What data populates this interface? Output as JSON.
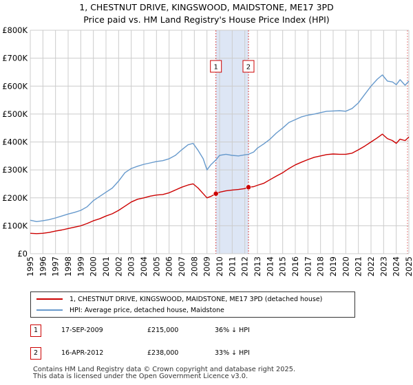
{
  "title_line1": "1, CHESTNUT DRIVE, KINGSWOOD, MAIDSTONE, ME17 3PD",
  "title_line2": "Price paid vs. HM Land Registry's House Price Index (HPI)",
  "colors": {
    "red": "#cc0000",
    "blue": "#6699cc",
    "shade": "#dde6f5",
    "grid": "#cccccc",
    "vline": "#cc0000"
  },
  "legend": {
    "red_label": "1, CHESTNUT DRIVE, KINGSWOOD, MAIDSTONE, ME17 3PD (detached house)",
    "blue_label": "HPI: Average price, detached house, Maidstone"
  },
  "transactions": [
    {
      "id": "1",
      "date": "17-SEP-2009",
      "price": "£215,000",
      "hpi": "36% ↓ HPI"
    },
    {
      "id": "2",
      "date": "16-APR-2012",
      "price": "£238,000",
      "hpi": "33% ↓ HPI"
    }
  ],
  "footer_line1": "Contains HM Land Registry data © Crown copyright and database right 2025.",
  "footer_line2": "This data is licensed under the Open Government Licence v3.0.",
  "chart_data": {
    "type": "line",
    "title": "1, CHESTNUT DRIVE, KINGSWOOD, MAIDSTONE, ME17 3PD — Price paid vs. HM Land Registry's House Price Index (HPI)",
    "xlabel": "",
    "ylabel": "",
    "xlim": [
      1995,
      2025
    ],
    "ylim": [
      0,
      800000
    ],
    "y_ticks": [
      {
        "value": 0,
        "label": "£0"
      },
      {
        "value": 100000,
        "label": "£100K"
      },
      {
        "value": 200000,
        "label": "£200K"
      },
      {
        "value": 300000,
        "label": "£300K"
      },
      {
        "value": 400000,
        "label": "£400K"
      },
      {
        "value": 500000,
        "label": "£500K"
      },
      {
        "value": 600000,
        "label": "£600K"
      },
      {
        "value": 700000,
        "label": "£700K"
      },
      {
        "value": 800000,
        "label": "£800K"
      }
    ],
    "x_ticks": [
      "1995",
      "1996",
      "1997",
      "1998",
      "1999",
      "2000",
      "2001",
      "2002",
      "2003",
      "2004",
      "2005",
      "2006",
      "2007",
      "2008",
      "2009",
      "2010",
      "2011",
      "2012",
      "2013",
      "2014",
      "2015",
      "2016",
      "2017",
      "2018",
      "2019",
      "2020",
      "2021",
      "2022",
      "2023",
      "2024",
      "2025"
    ],
    "highlight_span": [
      2009.71,
      2012.29
    ],
    "series": [
      {
        "name": "1, CHESTNUT DRIVE, KINGSWOOD, MAIDSTONE, ME17 3PD (detached house)",
        "color": "#cc0000",
        "x": [
          1995,
          1995.5,
          1996,
          1996.5,
          1997,
          1997.5,
          1998,
          1998.5,
          1999,
          1999.5,
          2000,
          2000.5,
          2001,
          2001.5,
          2002,
          2002.5,
          2003,
          2003.5,
          2004,
          2004.5,
          2005,
          2005.5,
          2006,
          2006.5,
          2007,
          2007.5,
          2007.9,
          2008.3,
          2008.7,
          2009,
          2009.3,
          2009.71,
          2010,
          2010.5,
          2011,
          2011.5,
          2012,
          2012.29,
          2012.7,
          2013,
          2013.5,
          2014,
          2014.5,
          2015,
          2015.5,
          2016,
          2016.5,
          2017,
          2017.5,
          2018,
          2018.5,
          2019,
          2019.5,
          2020,
          2020.5,
          2021,
          2021.5,
          2022,
          2022.5,
          2022.9,
          2023.3,
          2023.7,
          2024,
          2024.3,
          2024.7,
          2025
        ],
        "y": [
          73000,
          72000,
          73000,
          76000,
          81000,
          85000,
          90000,
          95000,
          100000,
          108000,
          118000,
          125000,
          135000,
          143000,
          155000,
          170000,
          185000,
          195000,
          200000,
          206000,
          210000,
          212000,
          218000,
          228000,
          238000,
          246000,
          250000,
          235000,
          215000,
          200000,
          205000,
          215000,
          220000,
          225000,
          228000,
          230000,
          233000,
          238000,
          240000,
          245000,
          252000,
          265000,
          278000,
          290000,
          305000,
          318000,
          328000,
          337000,
          345000,
          350000,
          355000,
          357000,
          356000,
          356000,
          360000,
          372000,
          385000,
          400000,
          415000,
          428000,
          412000,
          405000,
          395000,
          410000,
          405000,
          418000
        ]
      },
      {
        "name": "HPI: Average price, detached house, Maidstone",
        "color": "#6699cc",
        "x": [
          1995,
          1995.5,
          1996,
          1996.5,
          1997,
          1997.5,
          1998,
          1998.5,
          1999,
          1999.5,
          2000,
          2000.5,
          2001,
          2001.5,
          2002,
          2002.5,
          2003,
          2003.5,
          2004,
          2004.5,
          2005,
          2005.5,
          2006,
          2006.5,
          2007,
          2007.5,
          2007.9,
          2008.3,
          2008.7,
          2009,
          2009.3,
          2009.71,
          2010,
          2010.5,
          2011,
          2011.5,
          2012,
          2012.29,
          2012.7,
          2013,
          2013.5,
          2014,
          2014.5,
          2015,
          2015.5,
          2016,
          2016.5,
          2017,
          2017.5,
          2018,
          2018.5,
          2019,
          2019.5,
          2020,
          2020.5,
          2021,
          2021.5,
          2022,
          2022.5,
          2022.9,
          2023.3,
          2023.7,
          2024,
          2024.3,
          2024.7,
          2025
        ],
        "y": [
          120000,
          115000,
          118000,
          122000,
          128000,
          135000,
          142000,
          148000,
          155000,
          168000,
          190000,
          205000,
          220000,
          235000,
          260000,
          290000,
          305000,
          313000,
          320000,
          325000,
          330000,
          333000,
          340000,
          352000,
          372000,
          390000,
          395000,
          370000,
          340000,
          300000,
          318000,
          336000,
          352000,
          356000,
          352000,
          350000,
          354000,
          356000,
          364000,
          378000,
          393000,
          410000,
          432000,
          450000,
          470000,
          480000,
          490000,
          496000,
          500000,
          505000,
          510000,
          511000,
          512000,
          510000,
          520000,
          540000,
          570000,
          600000,
          625000,
          640000,
          618000,
          615000,
          605000,
          623000,
          603000,
          618000
        ]
      }
    ],
    "markers": [
      {
        "label": "1",
        "x": 2009.71,
        "y": 215000
      },
      {
        "label": "2",
        "x": 2012.29,
        "y": 238000
      }
    ]
  }
}
